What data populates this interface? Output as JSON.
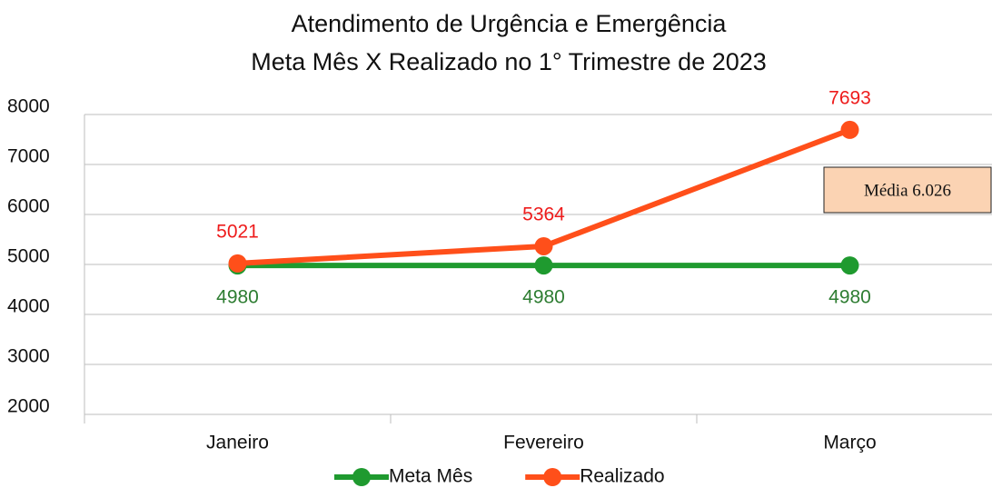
{
  "chart_data": {
    "type": "line",
    "title": "Atendimento de Urgência e Emergência",
    "subtitle": "Meta Mês X Realizado no 1° Trimestre de 2023",
    "categories": [
      "Janeiro",
      "Fevereiro",
      "Março"
    ],
    "series": [
      {
        "name": "Meta Mês",
        "color": "#1f9a2f",
        "label_color": "#2e7d32",
        "values": [
          4980,
          4980,
          4980
        ]
      },
      {
        "name": "Realizado",
        "color": "#ff4f1a",
        "label_color": "#ee1c1c",
        "values": [
          5021,
          5364,
          7693
        ]
      }
    ],
    "ylim": [
      2000,
      8000
    ],
    "yticks": [
      2000,
      3000,
      4000,
      5000,
      6000,
      7000,
      8000
    ],
    "grid": true,
    "legend": "bottom",
    "annotations": [
      {
        "text": "Média 6.026"
      }
    ]
  }
}
